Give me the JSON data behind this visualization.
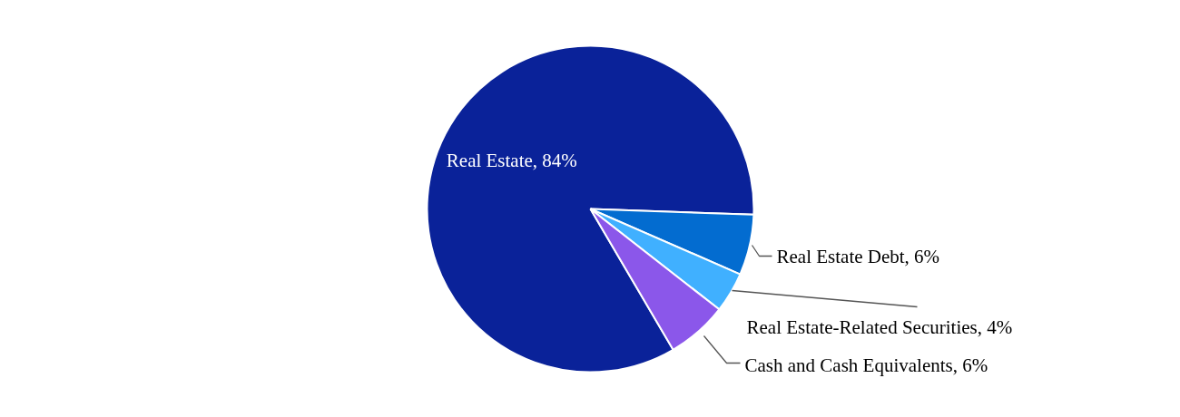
{
  "chart_data": {
    "type": "pie",
    "categories": [
      "Real Estate",
      "Real Estate Debt",
      "Real Estate-Related Securities",
      "Cash and Cash Equivalents"
    ],
    "values": [
      84,
      6,
      4,
      6
    ],
    "value_labels": [
      "84%",
      "6%",
      "4%",
      "6%"
    ],
    "colors": [
      "#0a2299",
      "#036cd0",
      "#40b0ff",
      "#8b57ea"
    ]
  }
}
